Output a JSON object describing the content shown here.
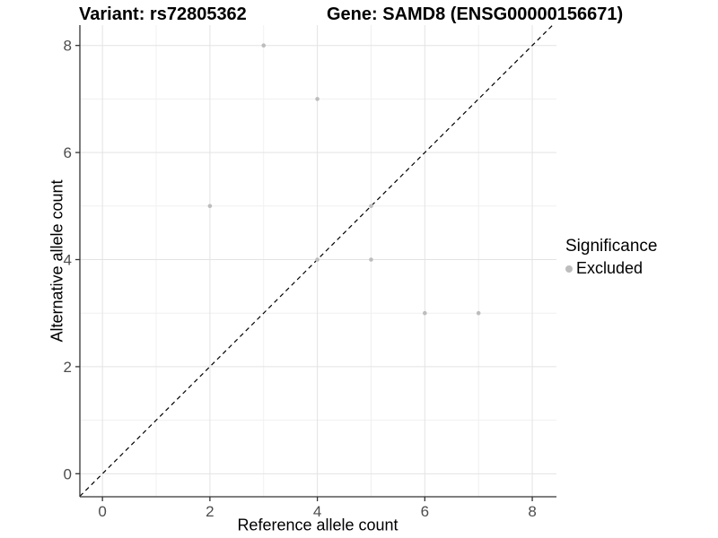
{
  "titles": {
    "variant": "Variant: rs72805362",
    "gene": "Gene: SAMD8 (ENSG00000156671)"
  },
  "chart_data": {
    "type": "scatter",
    "xlabel": "Reference allele count",
    "ylabel": "Alternative allele count",
    "xlim": [
      -0.42,
      8.45
    ],
    "ylim": [
      -0.43,
      8.38
    ],
    "x_ticks": [
      0,
      2,
      4,
      6,
      8
    ],
    "y_ticks": [
      0,
      2,
      4,
      6,
      8
    ],
    "x_minor": [
      1,
      3,
      5,
      7
    ],
    "y_minor": [
      1,
      3,
      5,
      7
    ],
    "grid": true,
    "series": [
      {
        "name": "Excluded",
        "color": "#bdbdbd",
        "points": [
          [
            2,
            5
          ],
          [
            3,
            8
          ],
          [
            4,
            4
          ],
          [
            4,
            7
          ],
          [
            5,
            4
          ],
          [
            5,
            5
          ],
          [
            6,
            3
          ],
          [
            7,
            3
          ]
        ]
      }
    ],
    "identity_line": {
      "slope": 1,
      "intercept": 0,
      "style": "dashed",
      "color": "#000000"
    },
    "legend": {
      "position": "right",
      "title": "Significance",
      "items": [
        {
          "label": "Excluded",
          "color": "#bdbdbd"
        }
      ]
    },
    "colors": {
      "axis_line": "#333333",
      "tick_label": "#4d4d4d",
      "grid_major": "#e3e3e3",
      "grid_minor": "#f0f0f0",
      "background": "#ffffff"
    }
  }
}
